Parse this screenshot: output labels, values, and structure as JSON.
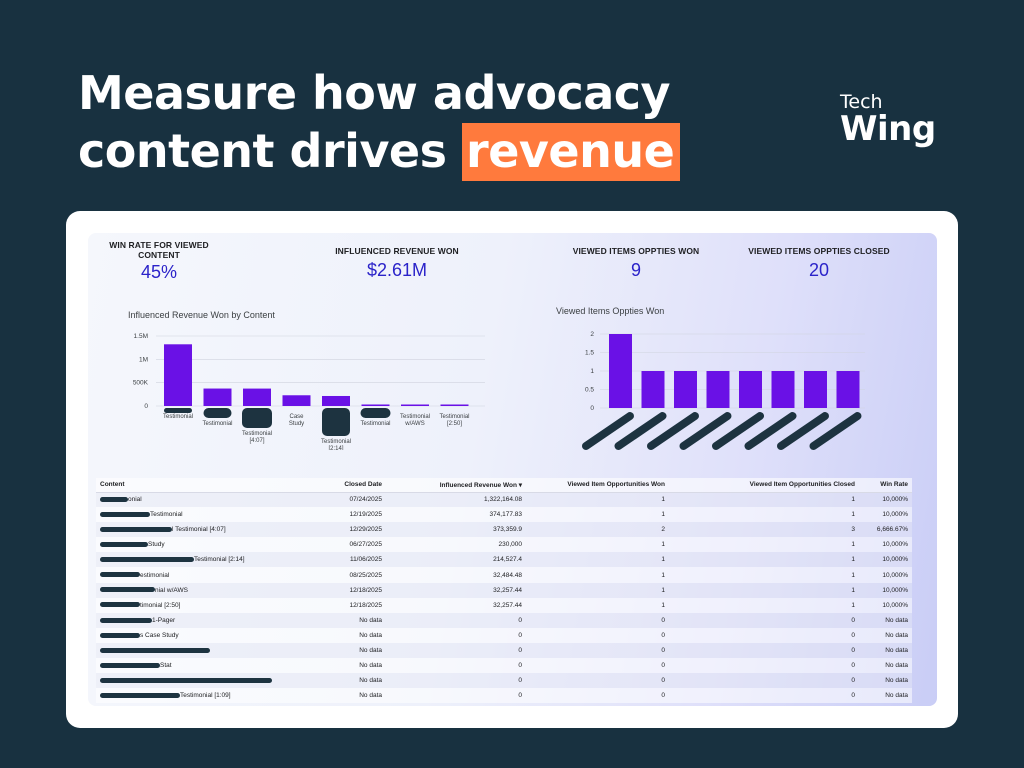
{
  "headline": {
    "line1": "Measure how advocacy",
    "line2_prefix": "content drives ",
    "line2_highlight": "revenue"
  },
  "logo": {
    "line1": "Tech",
    "line2": "Wing"
  },
  "kpis": [
    {
      "label": "WIN RATE FOR VIEWED CONTENT",
      "value": "45%"
    },
    {
      "label": "INFLUENCED REVENUE WON",
      "value": "$2.61M"
    },
    {
      "label": "VIEWED ITEMS OPPTIES WON",
      "value": "9"
    },
    {
      "label": "VIEWED ITEMS OPPTIES CLOSED",
      "value": "20"
    }
  ],
  "colors": {
    "bar": "#6a11e6",
    "kpi": "#2b23c9",
    "redaction": "#1d3340",
    "accent": "#ff7a3d"
  },
  "chart_data": [
    {
      "type": "bar",
      "title": "Influenced Revenue Won by Content",
      "categories": [
        "Testimonial",
        "Testimonial",
        "Testimonial [4:07]",
        "Case Study",
        "Testimonial [2:14]",
        "Testimonial",
        "Testimonial w/AWS",
        "Testimonial [2:50]"
      ],
      "values": [
        1322164.08,
        374177.83,
        373359.9,
        230000,
        214527.4,
        32484.48,
        32257.44,
        32257.44
      ],
      "yticks": [
        "0",
        "500K",
        "1M",
        "1.5M"
      ],
      "ylim": [
        0,
        1500000
      ],
      "xlabel": "",
      "ylabel": ""
    },
    {
      "type": "bar",
      "title": "Viewed Items Oppties Won",
      "categories": [
        "",
        "",
        "",
        "",
        "",
        "",
        "",
        ""
      ],
      "values": [
        2,
        1,
        1,
        1,
        1,
        1,
        1,
        1
      ],
      "yticks": [
        "0",
        "0.5",
        "1",
        "1.5",
        "2"
      ],
      "ylim": [
        0,
        2
      ],
      "xlabel": "",
      "ylabel": ""
    }
  ],
  "table": {
    "headers": [
      "Content",
      "Closed Date",
      "Influenced Revenue Won ▾",
      "Viewed Item Opportunities Won",
      "Viewed Item Opportunities Closed",
      "Win Rate"
    ],
    "rows": [
      [
        "onial",
        "07/24/2025",
        "1,322,164.08",
        "1",
        "1",
        "10,000%"
      ],
      [
        "Testimonial",
        "12/19/2025",
        "374,177.83",
        "1",
        "1",
        "10,000%"
      ],
      [
        "l Testimonial [4:07]",
        "12/29/2025",
        "373,359.9",
        "2",
        "3",
        "6,666.67%"
      ],
      [
        "Study",
        "06/27/2025",
        "230,000",
        "1",
        "1",
        "10,000%"
      ],
      [
        "Testimonial [2:14]",
        "11/06/2025",
        "214,527.4",
        "1",
        "1",
        "10,000%"
      ],
      [
        "estimonial",
        "08/25/2025",
        "32,484.48",
        "1",
        "1",
        "10,000%"
      ],
      [
        "nial w/AWS",
        "12/18/2025",
        "32,257.44",
        "1",
        "1",
        "10,000%"
      ],
      [
        "timonial [2:50]",
        "12/18/2025",
        "32,257.44",
        "1",
        "1",
        "10,000%"
      ],
      [
        "1-Pager",
        "No data",
        "0",
        "0",
        "0",
        "No data"
      ],
      [
        "s Case Study",
        "No data",
        "0",
        "0",
        "0",
        "No data"
      ],
      [
        "",
        "No data",
        "0",
        "0",
        "0",
        "No data"
      ],
      [
        "Stat",
        "No data",
        "0",
        "0",
        "0",
        "No data"
      ],
      [
        "",
        "No data",
        "0",
        "0",
        "0",
        "No data"
      ],
      [
        "Testimonial [1:09]",
        "No data",
        "0",
        "0",
        "0",
        "No data"
      ]
    ]
  }
}
